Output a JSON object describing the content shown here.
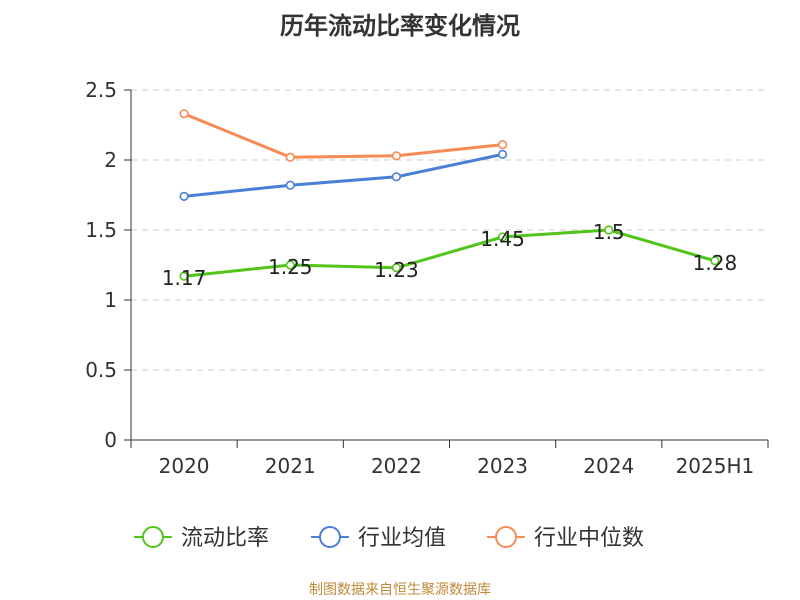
{
  "chart_data": {
    "type": "line",
    "title": "历年流动比率变化情况",
    "categories": [
      "2020",
      "2021",
      "2022",
      "2023",
      "2024",
      "2025H1"
    ],
    "y_ticks": [
      "0",
      "0.5",
      "1",
      "1.5",
      "2",
      "2.5"
    ],
    "ylim": [
      0,
      2.5
    ],
    "grid": true,
    "legend_position": "bottom",
    "series": [
      {
        "name": "流动比率",
        "color": "#52c41a",
        "values": [
          1.17,
          1.25,
          1.23,
          1.45,
          1.5,
          1.28
        ],
        "labels": [
          "1.17",
          "1.25",
          "1.23",
          "1.45",
          "1.5",
          "1.28"
        ]
      },
      {
        "name": "行业均值",
        "color": "#4a7fd8",
        "values": [
          1.74,
          1.82,
          1.88,
          2.04,
          null,
          null
        ]
      },
      {
        "name": "行业中位数",
        "color": "#f58b55",
        "values": [
          2.33,
          2.02,
          2.03,
          2.11,
          null,
          null
        ]
      }
    ]
  },
  "source": "制图数据来自恒生聚源数据库"
}
